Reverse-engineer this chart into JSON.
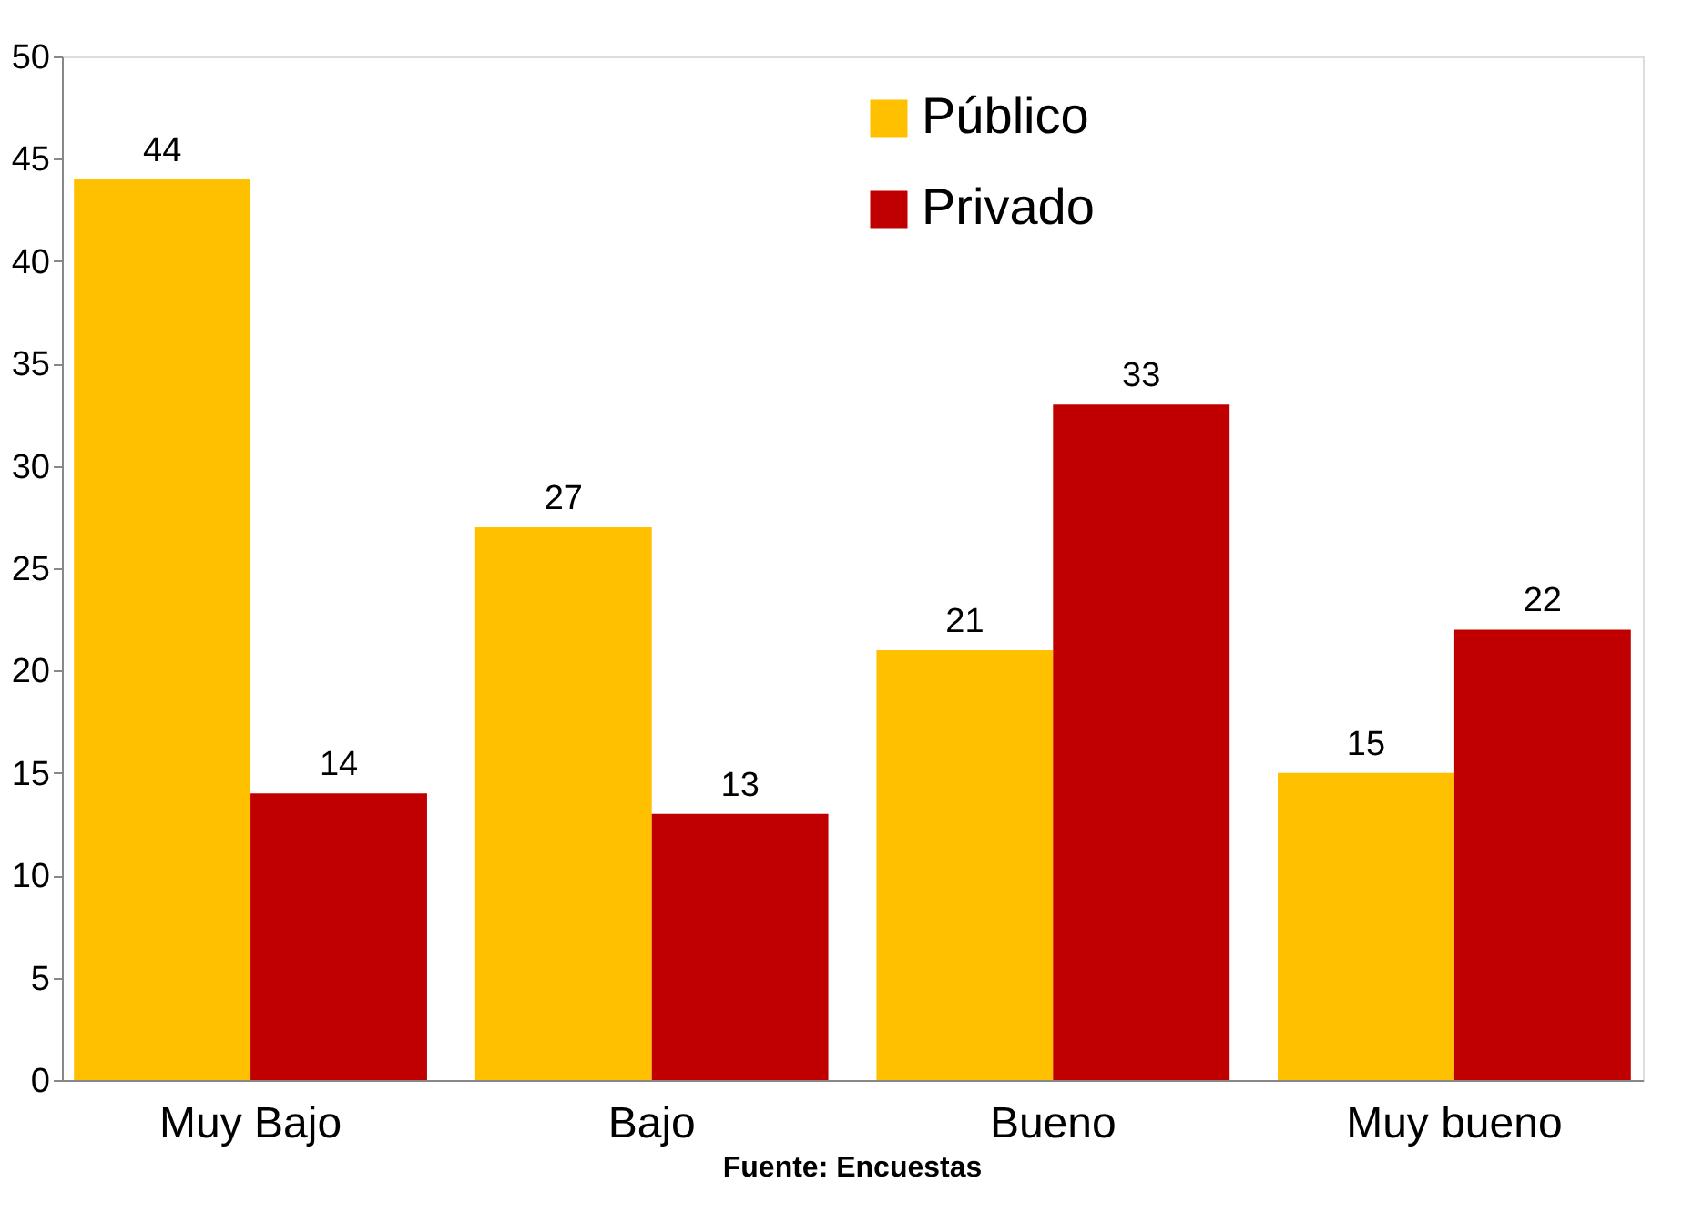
{
  "chart_data": {
    "type": "bar",
    "categories": [
      "Muy Bajo",
      "Bajo",
      "Bueno",
      "Muy bueno"
    ],
    "series": [
      {
        "name": "Público",
        "color": "#ffc000",
        "values": [
          44,
          27,
          21,
          15
        ]
      },
      {
        "name": "Privado",
        "color": "#c00000",
        "values": [
          14,
          13,
          33,
          22
        ]
      }
    ],
    "ylim": [
      0,
      50
    ],
    "yticks": [
      0,
      5,
      10,
      15,
      20,
      25,
      30,
      35,
      40,
      45,
      50
    ],
    "grid": false,
    "legend": "top",
    "data_labels": true,
    "annotations": [
      "Fuente: Encuestas"
    ]
  }
}
